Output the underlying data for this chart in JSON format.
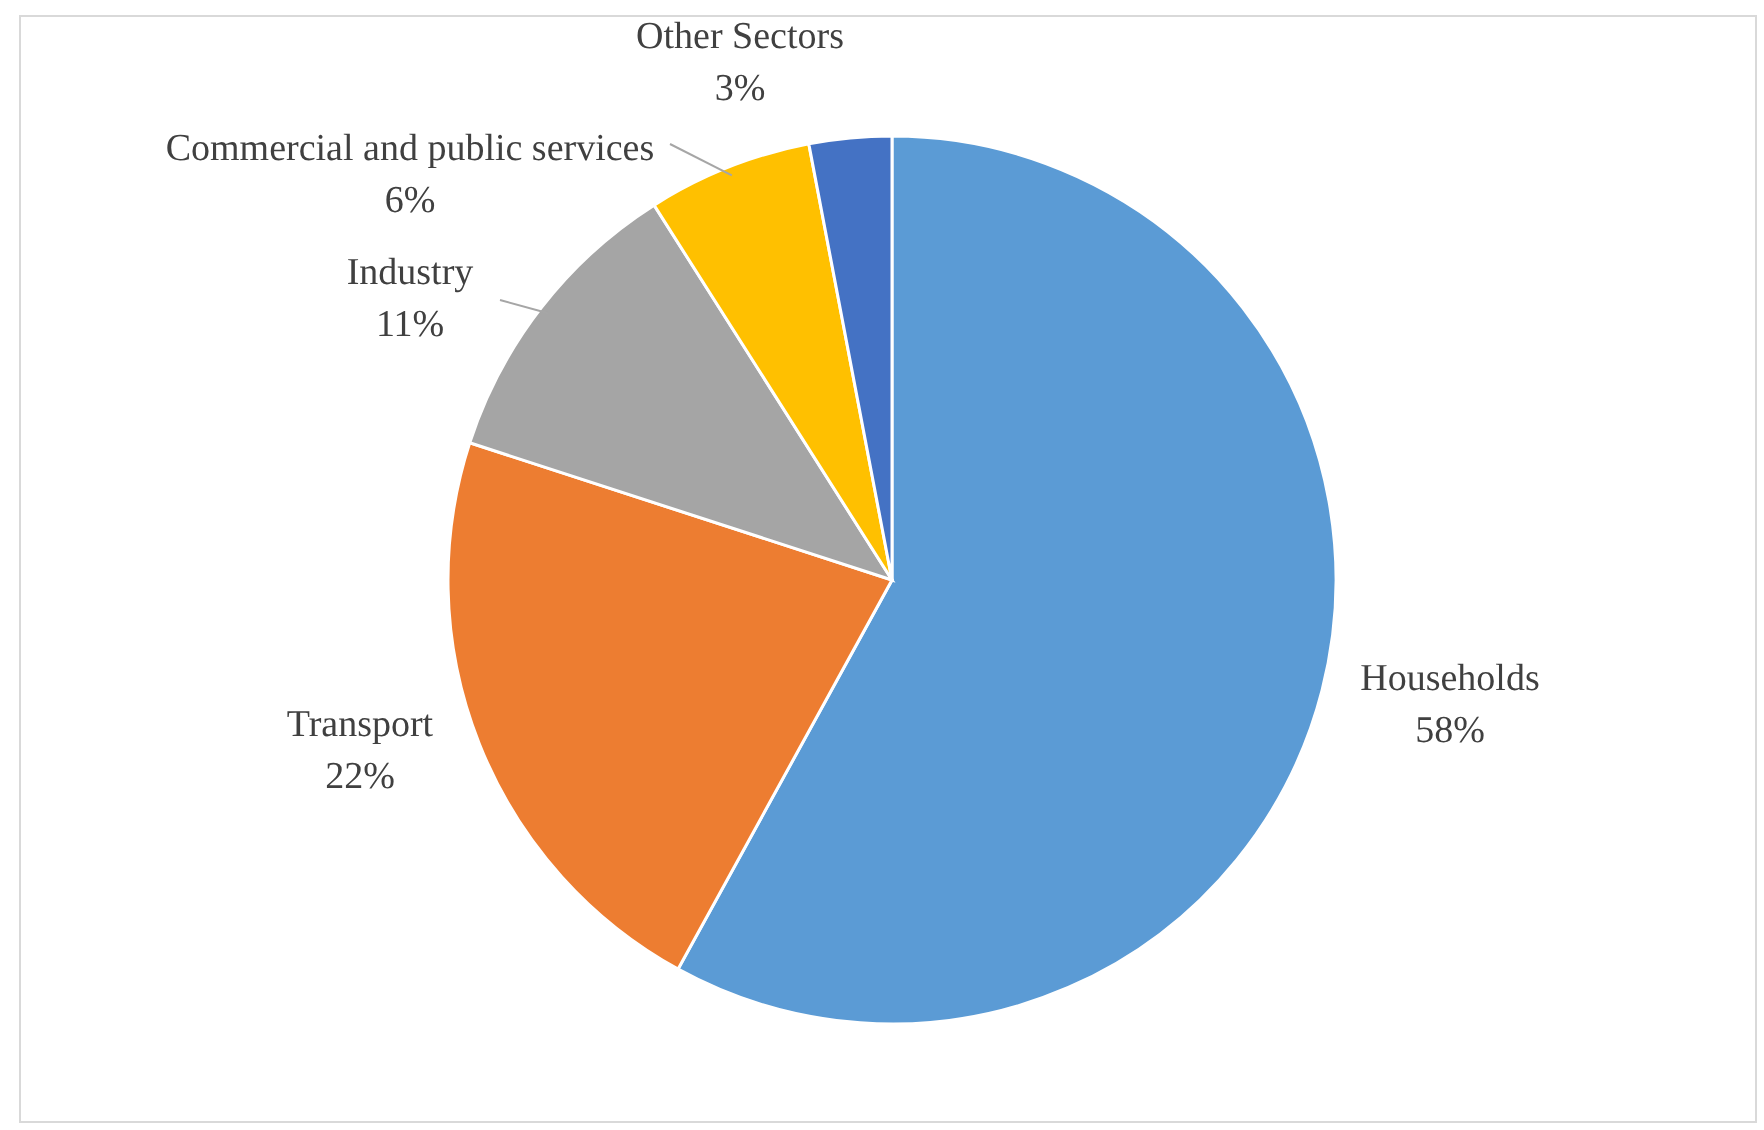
{
  "chart_data": {
    "type": "pie",
    "categories": [
      "Households",
      "Transport",
      "Industry",
      "Commercial and public services",
      "Other Sectors"
    ],
    "values": [
      58,
      22,
      11,
      6,
      3
    ],
    "value_labels": [
      "58%",
      "22%",
      "11%",
      "6%",
      "3%"
    ],
    "colors": [
      "#5b9bd5",
      "#ed7d31",
      "#a5a5a5",
      "#ffc000",
      "#4472c4"
    ]
  }
}
